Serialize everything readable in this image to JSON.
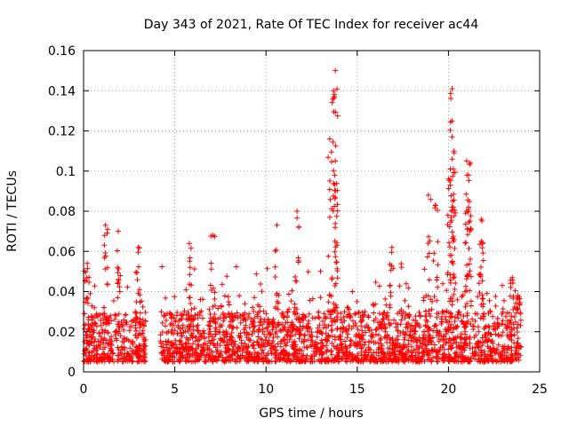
{
  "chart_data": {
    "type": "scatter",
    "title": "Day 343 of 2021, Rate Of TEC Index for receiver ac44",
    "xlabel": "GPS time / hours",
    "ylabel": "ROTI / TECUs",
    "xlim": [
      0,
      25
    ],
    "ylim": [
      0,
      0.16
    ],
    "xticks": [
      0,
      5,
      10,
      15,
      20,
      25
    ],
    "xtick_labels": [
      "0",
      "5",
      "10",
      "15",
      "20",
      "25"
    ],
    "yticks": [
      0,
      0.02,
      0.04,
      0.06,
      0.08,
      0.1,
      0.12,
      0.14,
      0.16
    ],
    "ytick_labels": [
      "0",
      "0.02",
      "0.04",
      "0.06",
      "0.08",
      "0.1",
      "0.12",
      "0.14",
      "0.16"
    ],
    "grid": true,
    "marker": "+",
    "color": "#ff0000",
    "data_gaps_hours": [
      [
        3.4,
        4.2
      ]
    ],
    "baseline_range": [
      0.005,
      0.03
    ],
    "notable_points": [
      {
        "x": 0.2,
        "y": 0.054
      },
      {
        "x": 1.2,
        "y": 0.073
      },
      {
        "x": 1.9,
        "y": 0.07
      },
      {
        "x": 3.0,
        "y": 0.062
      },
      {
        "x": 5.8,
        "y": 0.064
      },
      {
        "x": 7.1,
        "y": 0.068
      },
      {
        "x": 10.6,
        "y": 0.073
      },
      {
        "x": 11.7,
        "y": 0.08
      },
      {
        "x": 13.5,
        "y": 0.116
      },
      {
        "x": 13.7,
        "y": 0.14
      },
      {
        "x": 13.8,
        "y": 0.15
      },
      {
        "x": 13.75,
        "y": 0.137
      },
      {
        "x": 13.8,
        "y": 0.105
      },
      {
        "x": 13.8,
        "y": 0.087
      },
      {
        "x": 16.9,
        "y": 0.062
      },
      {
        "x": 18.9,
        "y": 0.088
      },
      {
        "x": 19.3,
        "y": 0.083
      },
      {
        "x": 20.2,
        "y": 0.141
      },
      {
        "x": 20.2,
        "y": 0.125
      },
      {
        "x": 20.2,
        "y": 0.117
      },
      {
        "x": 20.3,
        "y": 0.11
      },
      {
        "x": 20.0,
        "y": 0.096
      },
      {
        "x": 20.1,
        "y": 0.093
      },
      {
        "x": 21.0,
        "y": 0.105
      },
      {
        "x": 21.2,
        "y": 0.104
      },
      {
        "x": 21.1,
        "y": 0.098
      },
      {
        "x": 21.1,
        "y": 0.082
      },
      {
        "x": 21.8,
        "y": 0.076
      },
      {
        "x": 21.8,
        "y": 0.065
      },
      {
        "x": 23.5,
        "y": 0.047
      },
      {
        "x": 23.8,
        "y": 0.038
      }
    ]
  }
}
